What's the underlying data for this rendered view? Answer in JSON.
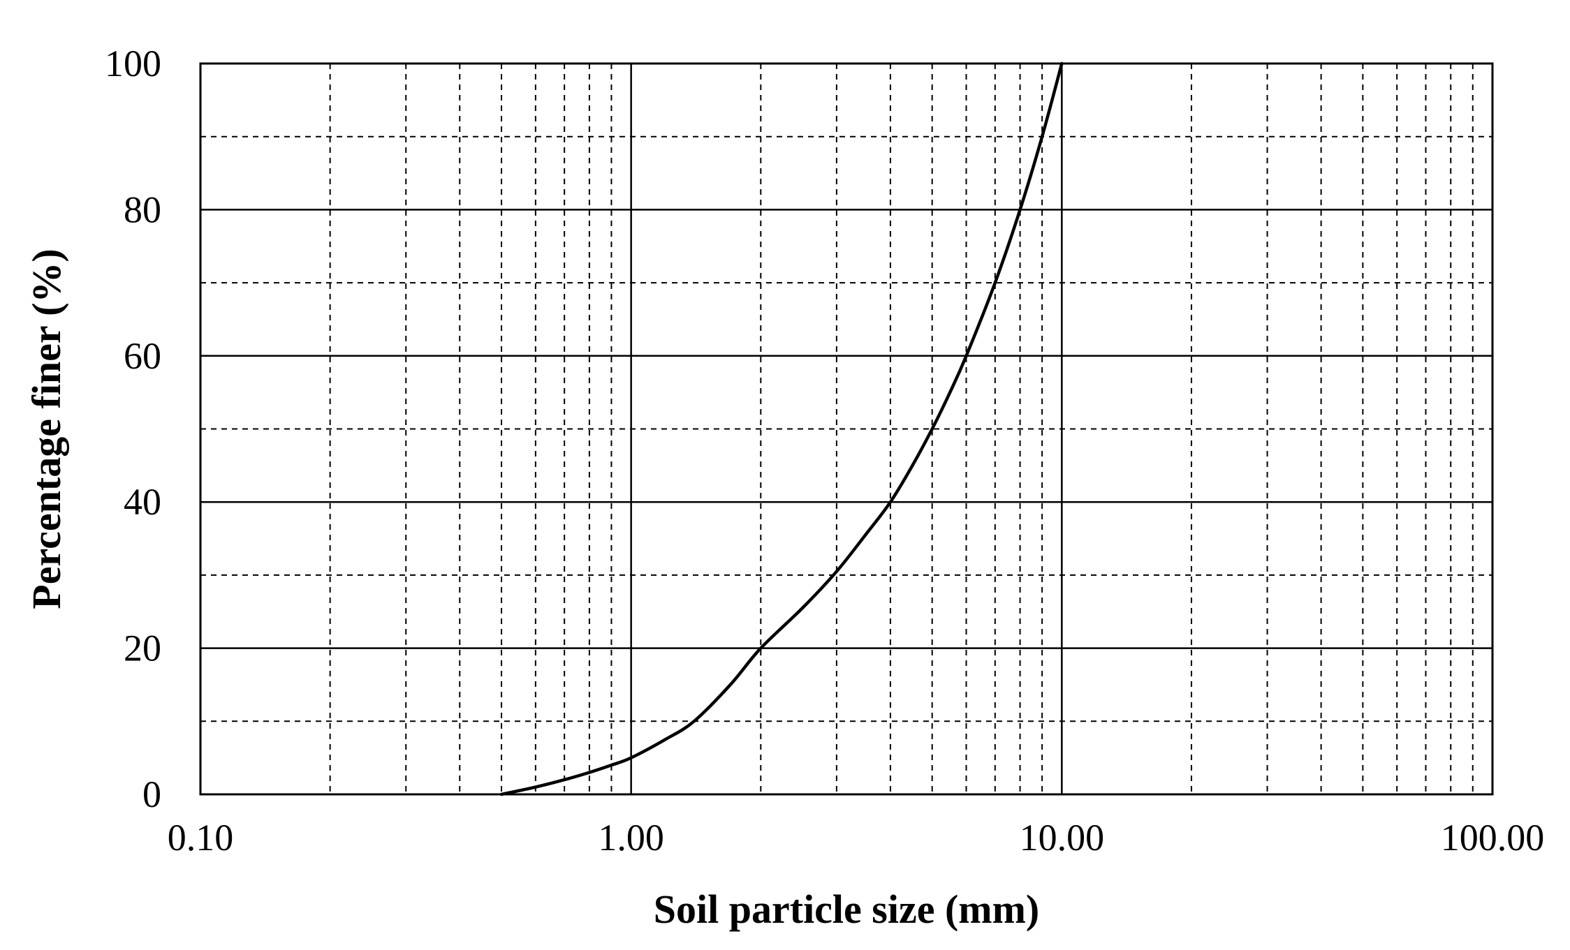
{
  "chart_data": {
    "type": "line",
    "title": "",
    "xlabel": "Soil particle size (mm)",
    "ylabel": "Percentage finer (%)",
    "x_scale": "log",
    "xlim": [
      0.1,
      100
    ],
    "ylim": [
      0,
      100
    ],
    "x_ticks": [
      "0.10",
      "1.00",
      "10.00",
      "100.00"
    ],
    "y_ticks": [
      "0",
      "20",
      "40",
      "60",
      "80",
      "100"
    ],
    "grid": {
      "major": "solid",
      "minor": "dashed",
      "x_minor_values": [
        0.2,
        0.3,
        0.4,
        0.5,
        0.6,
        0.7,
        0.8,
        0.9,
        2,
        3,
        4,
        5,
        6,
        7,
        8,
        9,
        20,
        30,
        40,
        50,
        60,
        70,
        80,
        90
      ],
      "y_minor_values": [
        10,
        30,
        50,
        70,
        90
      ]
    },
    "line_color": "#000000",
    "series": [
      {
        "x": [
          0.5,
          0.6,
          0.7,
          0.8,
          0.9,
          1.0,
          1.2,
          1.4,
          1.7,
          2.0,
          2.5,
          3.0,
          3.5,
          4.0,
          4.5,
          5.0,
          5.5,
          6.0,
          7.0,
          8.0,
          9.0,
          10.0
        ],
        "y": [
          0,
          1,
          2,
          3,
          4,
          5,
          7.5,
          10,
          15,
          20,
          25.5,
          30.5,
          35.5,
          40,
          45,
          50,
          55,
          60,
          70,
          80,
          90,
          100
        ]
      }
    ]
  }
}
